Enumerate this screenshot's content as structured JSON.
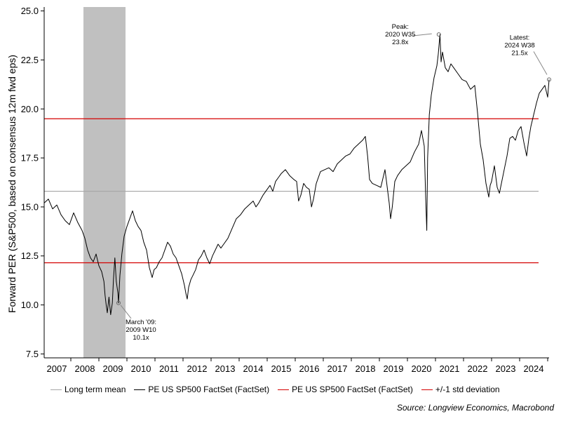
{
  "chart_data": {
    "type": "line",
    "ylabel": "Forward PER (S&P500, based on consensus 12m fwd eps)",
    "xlabel": "",
    "ylim": [
      7.3,
      25.2
    ],
    "xlim": [
      2006.55,
      2024.55
    ],
    "yticks": [
      7.5,
      10.0,
      12.5,
      15.0,
      17.5,
      20.0,
      22.5,
      25.0
    ],
    "ytick_labels": [
      "7.5",
      "10.0",
      "12.5",
      "15.0",
      "17.5",
      "20.0",
      "22.5",
      "25.0"
    ],
    "xticks": [
      2007,
      2008,
      2009,
      2010,
      2011,
      2012,
      2013,
      2014,
      2015,
      2016,
      2017,
      2018,
      2019,
      2020,
      2021,
      2022,
      2023,
      2024
    ],
    "recession_band": {
      "start": 2007.95,
      "end": 2009.45
    },
    "reference_lines": [
      {
        "name": "Long term mean",
        "value": 15.8,
        "color": "#a6a6a6"
      },
      {
        "name": "+/-1 std deviation",
        "value": 19.5,
        "color": "#d40000"
      },
      {
        "name": "+/-1 std deviation",
        "value": 12.15,
        "color": "#d40000"
      }
    ],
    "series": [
      {
        "name": "PE US SP500 FactSet (FactSet)",
        "color": "#000000",
        "x": [
          2006.55,
          2006.7,
          2006.85,
          2007.0,
          2007.15,
          2007.3,
          2007.45,
          2007.6,
          2007.75,
          2007.9,
          2008.0,
          2008.1,
          2008.2,
          2008.3,
          2008.4,
          2008.5,
          2008.6,
          2008.68,
          2008.72,
          2008.76,
          2008.8,
          2008.86,
          2008.92,
          2008.98,
          2009.02,
          2009.07,
          2009.12,
          2009.18,
          2009.2,
          2009.25,
          2009.32,
          2009.4,
          2009.5,
          2009.6,
          2009.7,
          2009.8,
          2009.9,
          2010.0,
          2010.1,
          2010.2,
          2010.3,
          2010.4,
          2010.47,
          2010.55,
          2010.65,
          2010.75,
          2010.85,
          2010.95,
          2011.05,
          2011.15,
          2011.25,
          2011.35,
          2011.45,
          2011.55,
          2011.6,
          2011.65,
          2011.7,
          2011.78,
          2011.85,
          2011.95,
          2012.05,
          2012.15,
          2012.25,
          2012.35,
          2012.45,
          2012.55,
          2012.65,
          2012.75,
          2012.85,
          2012.95,
          2013.1,
          2013.25,
          2013.4,
          2013.55,
          2013.7,
          2013.85,
          2014.0,
          2014.1,
          2014.2,
          2014.35,
          2014.5,
          2014.6,
          2014.7,
          2014.8,
          2014.9,
          2015.0,
          2015.15,
          2015.3,
          2015.45,
          2015.55,
          2015.62,
          2015.7,
          2015.8,
          2015.9,
          2016.0,
          2016.08,
          2016.15,
          2016.25,
          2016.4,
          2016.55,
          2016.7,
          2016.85,
          2017.0,
          2017.15,
          2017.3,
          2017.45,
          2017.6,
          2017.75,
          2017.9,
          2018.0,
          2018.08,
          2018.15,
          2018.25,
          2018.4,
          2018.55,
          2018.7,
          2018.78,
          2018.85,
          2018.9,
          2018.96,
          2019.05,
          2019.15,
          2019.3,
          2019.45,
          2019.6,
          2019.75,
          2019.9,
          2020.0,
          2020.1,
          2020.15,
          2020.19,
          2020.22,
          2020.28,
          2020.35,
          2020.45,
          2020.55,
          2020.6,
          2020.66,
          2020.7,
          2020.75,
          2020.85,
          2020.95,
          2021.05,
          2021.15,
          2021.3,
          2021.45,
          2021.6,
          2021.75,
          2021.9,
          2022.0,
          2022.1,
          2022.2,
          2022.3,
          2022.4,
          2022.45,
          2022.5,
          2022.6,
          2022.7,
          2022.78,
          2022.85,
          2022.95,
          2023.05,
          2023.15,
          2023.25,
          2023.35,
          2023.45,
          2023.55,
          2023.65,
          2023.75,
          2023.83,
          2023.9,
          2024.0,
          2024.1,
          2024.2,
          2024.3,
          2024.4,
          2024.5,
          2024.55
        ],
        "y": [
          15.2,
          15.4,
          14.9,
          15.1,
          14.6,
          14.3,
          14.1,
          14.7,
          14.2,
          13.8,
          13.4,
          12.8,
          12.4,
          12.2,
          12.6,
          12.0,
          11.7,
          11.2,
          10.5,
          10.0,
          9.6,
          10.4,
          9.5,
          10.1,
          11.3,
          12.4,
          11.2,
          10.6,
          10.1,
          11.5,
          12.6,
          13.5,
          14.0,
          14.4,
          14.8,
          14.3,
          14.0,
          13.8,
          13.2,
          12.8,
          11.9,
          11.4,
          11.8,
          11.9,
          12.2,
          12.4,
          12.8,
          13.2,
          13.0,
          12.6,
          12.4,
          12.0,
          11.6,
          11.0,
          10.6,
          10.3,
          10.9,
          11.3,
          11.5,
          11.8,
          12.3,
          12.5,
          12.8,
          12.4,
          12.1,
          12.5,
          12.8,
          13.1,
          12.9,
          13.1,
          13.4,
          13.9,
          14.4,
          14.6,
          14.9,
          15.1,
          15.3,
          15.0,
          15.2,
          15.6,
          15.9,
          16.1,
          15.8,
          16.3,
          16.5,
          16.7,
          16.9,
          16.6,
          16.4,
          16.3,
          15.3,
          15.6,
          16.2,
          16.0,
          15.9,
          15.0,
          15.4,
          16.2,
          16.8,
          16.9,
          17.0,
          16.8,
          17.2,
          17.4,
          17.6,
          17.7,
          18.0,
          18.2,
          18.4,
          18.6,
          17.6,
          16.4,
          16.2,
          16.1,
          16.0,
          16.9,
          16.0,
          15.2,
          14.4,
          15.0,
          16.3,
          16.6,
          16.9,
          17.1,
          17.3,
          17.8,
          18.2,
          18.9,
          18.1,
          15.5,
          13.8,
          17.5,
          19.7,
          20.7,
          21.6,
          22.2,
          22.8,
          23.8,
          22.4,
          22.9,
          22.1,
          21.9,
          22.3,
          22.1,
          21.8,
          21.5,
          21.4,
          21.0,
          21.2,
          19.8,
          18.2,
          17.4,
          16.2,
          15.5,
          16.1,
          16.3,
          17.1,
          16.0,
          15.7,
          16.2,
          16.9,
          17.6,
          18.5,
          18.6,
          18.4,
          18.9,
          19.1,
          18.3,
          17.6,
          18.5,
          19.1,
          19.7,
          20.3,
          20.8,
          21.0,
          21.2,
          20.6,
          21.5
        ],
        "data_labels": [
          {
            "x": 2020.62,
            "y": 23.8,
            "text": "Peak:\n2020 W35\n23.8x"
          },
          {
            "x": 2024.55,
            "y": 21.5,
            "text": "Latest:\n2024 W38\n21.5x"
          },
          {
            "x": 2009.2,
            "y": 10.1,
            "text": "March '09:\n2009 W10\n10.1x"
          }
        ]
      }
    ],
    "legend": [
      {
        "label": "Long term mean",
        "color": "#a6a6a6"
      },
      {
        "label": "PE US SP500 FactSet (FactSet)",
        "color": "#000000"
      },
      {
        "label": "PE US SP500 FactSet (FactSet)",
        "color": "#d40000"
      },
      {
        "label": "+/-1 std deviation",
        "color": "#d40000"
      }
    ],
    "legend_position": "bottom",
    "grid": false,
    "source": "Source: Longview Economics, Macrobond"
  }
}
